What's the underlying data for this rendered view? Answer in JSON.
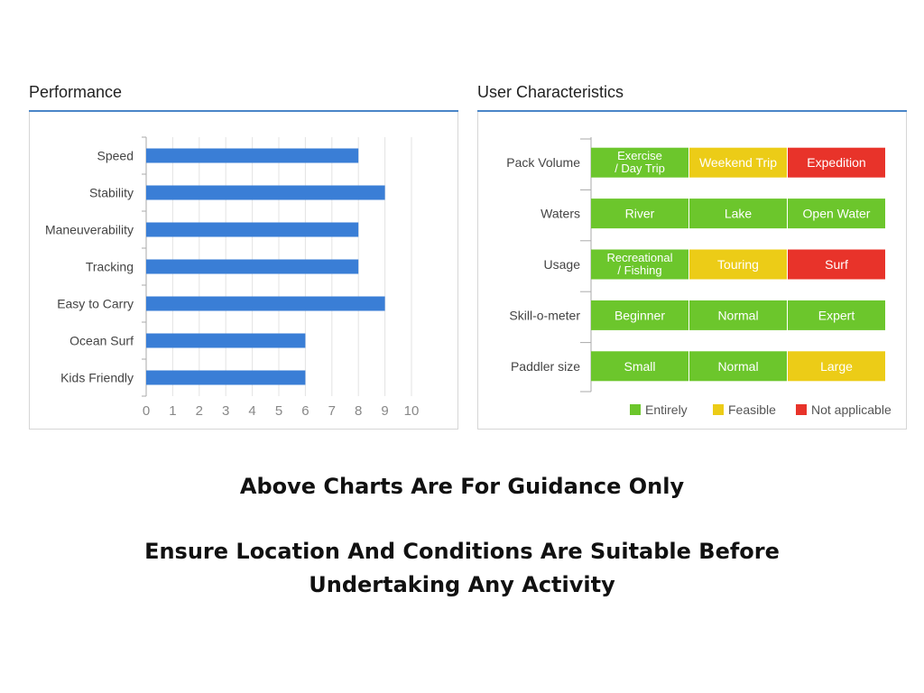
{
  "performance": {
    "title": "Performance"
  },
  "user_characteristics": {
    "title": "User Characteristics",
    "columns": 3,
    "rows": [
      {
        "label": "Pack Volume",
        "cells": [
          {
            "lines": [
              "Exercise",
              "/ Day Trip"
            ],
            "status": "entirely"
          },
          {
            "lines": [
              "Weekend Trip"
            ],
            "status": "feasible"
          },
          {
            "lines": [
              "Expedition"
            ],
            "status": "not_applicable"
          }
        ]
      },
      {
        "label": "Waters",
        "cells": [
          {
            "lines": [
              "River"
            ],
            "status": "entirely"
          },
          {
            "lines": [
              "Lake"
            ],
            "status": "entirely"
          },
          {
            "lines": [
              "Open Water"
            ],
            "status": "entirely"
          }
        ]
      },
      {
        "label": "Usage",
        "cells": [
          {
            "lines": [
              "Recreational",
              "/ Fishing"
            ],
            "status": "entirely"
          },
          {
            "lines": [
              "Touring"
            ],
            "status": "feasible"
          },
          {
            "lines": [
              "Surf"
            ],
            "status": "not_applicable"
          }
        ]
      },
      {
        "label": "Skill-o-meter",
        "cells": [
          {
            "lines": [
              "Beginner"
            ],
            "status": "entirely"
          },
          {
            "lines": [
              "Normal"
            ],
            "status": "entirely"
          },
          {
            "lines": [
              "Expert"
            ],
            "status": "entirely"
          }
        ]
      },
      {
        "label": "Paddler size",
        "cells": [
          {
            "lines": [
              "Small"
            ],
            "status": "entirely"
          },
          {
            "lines": [
              "Normal"
            ],
            "status": "entirely"
          },
          {
            "lines": [
              "Large"
            ],
            "status": "feasible"
          }
        ]
      }
    ],
    "legend": [
      {
        "key": "entirely",
        "label": "Entirely",
        "color": "#6cc62c"
      },
      {
        "key": "feasible",
        "label": "Feasible",
        "color": "#eccc17"
      },
      {
        "key": "not_applicable",
        "label": "Not applicable",
        "color": "#e8332a"
      }
    ],
    "legend_position": "bottom-right"
  },
  "chart_data": [
    {
      "type": "bar",
      "orientation": "horizontal",
      "title": "Performance",
      "categories": [
        "Speed",
        "Stability",
        "Maneuverability",
        "Tracking",
        "Easy to Carry",
        "Ocean Surf",
        "Kids Friendly"
      ],
      "values": [
        8,
        9,
        8,
        8,
        9,
        6,
        6
      ],
      "xlim": [
        0,
        10
      ],
      "x_ticks": [
        0,
        1,
        2,
        3,
        4,
        5,
        6,
        7,
        8,
        9,
        10
      ],
      "grid": true,
      "bar_color": "#3a7ed6"
    },
    {
      "type": "table",
      "title": "User Characteristics",
      "rows": [
        "Pack Volume",
        "Waters",
        "Usage",
        "Skill-o-meter",
        "Paddler size"
      ],
      "values": [
        [
          "Exercise / Day Trip",
          "Weekend Trip",
          "Expedition"
        ],
        [
          "River",
          "Lake",
          "Open Water"
        ],
        [
          "Recreational / Fishing",
          "Touring",
          "Surf"
        ],
        [
          "Beginner",
          "Normal",
          "Expert"
        ],
        [
          "Small",
          "Normal",
          "Large"
        ]
      ],
      "status": [
        [
          "Entirely",
          "Feasible",
          "Not applicable"
        ],
        [
          "Entirely",
          "Entirely",
          "Entirely"
        ],
        [
          "Entirely",
          "Feasible",
          "Not applicable"
        ],
        [
          "Entirely",
          "Entirely",
          "Entirely"
        ],
        [
          "Entirely",
          "Entirely",
          "Feasible"
        ]
      ]
    }
  ],
  "footer": {
    "line1": "Above Charts Are For Guidance Only",
    "line2": "Ensure Location And Conditions Are Suitable Before",
    "line3": "Undertaking Any Activity"
  }
}
